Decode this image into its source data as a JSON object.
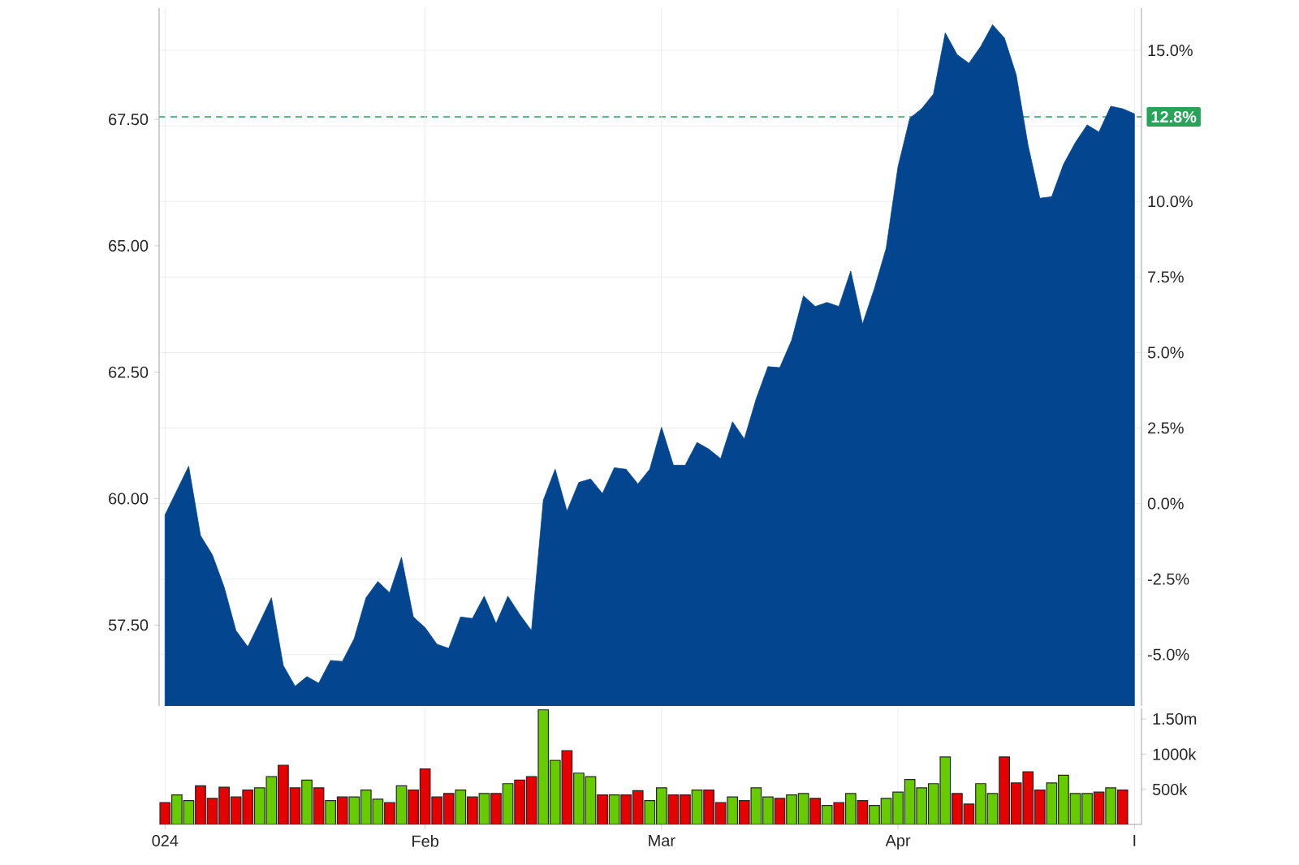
{
  "chart_data": [
    {
      "type": "area",
      "color": "#03468f",
      "categories": [
        null,
        null,
        null,
        null,
        null,
        null,
        null,
        null,
        null,
        null,
        null,
        null,
        null,
        null,
        null,
        null,
        null,
        null,
        null,
        null,
        null,
        null,
        null,
        null,
        null,
        null,
        null,
        null,
        null,
        null,
        null,
        null,
        null,
        null,
        null,
        null,
        null,
        null,
        null,
        null,
        null,
        null,
        null,
        null,
        null,
        null,
        null,
        null,
        null,
        null,
        null,
        null,
        null,
        null,
        null,
        null,
        null,
        null,
        null,
        null,
        null,
        null,
        null,
        null,
        null,
        null,
        null,
        null,
        null,
        null,
        null,
        null,
        null,
        null,
        null,
        null,
        null,
        null,
        null,
        null,
        null,
        null,
        null
      ],
      "values": [
        59.68,
        60.16,
        60.64,
        59.27,
        58.89,
        58.25,
        57.39,
        57.07,
        57.55,
        58.04,
        56.7,
        56.29,
        56.48,
        56.35,
        56.8,
        56.78,
        57.23,
        58.04,
        58.36,
        58.14,
        58.84,
        57.66,
        57.45,
        57.12,
        57.04,
        57.66,
        57.63,
        58.07,
        57.53,
        58.07,
        57.71,
        57.39,
        59.97,
        60.58,
        59.75,
        60.32,
        60.39,
        60.1,
        60.61,
        60.58,
        60.29,
        60.58,
        61.41,
        60.66,
        60.66,
        61.11,
        60.98,
        60.79,
        61.52,
        61.18,
        61.97,
        62.61,
        62.59,
        63.13,
        64.01,
        63.8,
        63.88,
        63.8,
        64.5,
        63.45,
        64.15,
        64.95,
        66.56,
        67.52,
        67.71,
        68.0,
        69.21,
        68.78,
        68.61,
        68.94,
        69.37,
        69.11,
        68.38,
        66.99,
        65.94,
        65.97,
        66.61,
        67.04,
        67.39,
        67.25,
        67.76,
        67.71,
        67.61
      ],
      "ylim": [
        55.9,
        69.7
      ],
      "yticks": [
        {
          "value": 57.5,
          "label": "57.50"
        },
        {
          "value": 60,
          "label": "60.00"
        },
        {
          "value": 62.5,
          "label": "62.50"
        },
        {
          "value": 65,
          "label": "65.00"
        },
        {
          "value": 67.5,
          "label": "67.50"
        }
      ],
      "y2lim": [
        -6.7,
        16.4
      ],
      "y2ticks": [
        {
          "value": -5,
          "label": "-5.0%"
        },
        {
          "value": -2.5,
          "label": "-2.5%"
        },
        {
          "value": 0,
          "label": "0.0%"
        },
        {
          "value": 2.5,
          "label": "2.5%"
        },
        {
          "value": 5,
          "label": "5.0%"
        },
        {
          "value": 7.5,
          "label": "7.5%"
        },
        {
          "value": 10,
          "label": "10.0%"
        },
        {
          "value": 12.5,
          "label": null
        },
        {
          "value": 15,
          "label": "15.0%"
        }
      ],
      "ref_lines": [
        {
          "axis": "y2",
          "value": 12.8,
          "label": "12.8%",
          "color": "#27a35a",
          "line_style": "dashed"
        }
      ],
      "grid": true,
      "tick_labels": "y"
    },
    {
      "type": "bar",
      "categories": [
        "024",
        null,
        null,
        null,
        null,
        null,
        null,
        null,
        null,
        null,
        null,
        null,
        null,
        null,
        null,
        null,
        null,
        null,
        null,
        null,
        null,
        null,
        "Feb",
        null,
        null,
        null,
        null,
        null,
        null,
        null,
        null,
        null,
        null,
        null,
        null,
        null,
        null,
        null,
        null,
        null,
        null,
        null,
        "Mar",
        null,
        null,
        null,
        null,
        null,
        null,
        null,
        null,
        null,
        null,
        null,
        null,
        null,
        null,
        null,
        null,
        null,
        null,
        null,
        "Apr",
        null,
        null,
        null,
        null,
        null,
        null,
        null,
        null,
        null,
        null,
        null,
        null,
        null,
        null,
        null,
        null,
        null,
        null,
        null,
        "I"
      ],
      "values": [
        310000,
        420000,
        340000,
        550000,
        370000,
        530000,
        390000,
        490000,
        520000,
        680000,
        840000,
        520000,
        630000,
        520000,
        340000,
        390000,
        390000,
        490000,
        360000,
        310000,
        550000,
        490000,
        790000,
        390000,
        440000,
        490000,
        390000,
        440000,
        440000,
        580000,
        630000,
        680000,
        1630000,
        910000,
        1050000,
        730000,
        680000,
        420000,
        420000,
        420000,
        480000,
        340000,
        520000,
        420000,
        420000,
        490000,
        490000,
        310000,
        390000,
        340000,
        520000,
        390000,
        370000,
        420000,
        440000,
        370000,
        270000,
        310000,
        440000,
        340000,
        270000,
        370000,
        460000,
        640000,
        520000,
        580000,
        960000,
        440000,
        290000,
        580000,
        440000,
        960000,
        590000,
        750000,
        490000,
        590000,
        700000,
        440000,
        440000,
        460000,
        520000,
        490000,
        null
      ],
      "colors": [
        "#e60000",
        "#66cc00",
        "#66cc00",
        "#e60000",
        "#e60000",
        "#e60000",
        "#e60000",
        "#e60000",
        "#66cc00",
        "#66cc00",
        "#e60000",
        "#e60000",
        "#66cc00",
        "#e60000",
        "#66cc00",
        "#e60000",
        "#66cc00",
        "#66cc00",
        "#66cc00",
        "#e60000",
        "#66cc00",
        "#e60000",
        "#e60000",
        "#e60000",
        "#e60000",
        "#66cc00",
        "#e60000",
        "#66cc00",
        "#e60000",
        "#66cc00",
        "#e60000",
        "#e60000",
        "#66cc00",
        "#66cc00",
        "#e60000",
        "#66cc00",
        "#66cc00",
        "#e60000",
        "#66cc00",
        "#e60000",
        "#e60000",
        "#66cc00",
        "#66cc00",
        "#e60000",
        "#e60000",
        "#66cc00",
        "#e60000",
        "#e60000",
        "#66cc00",
        "#e60000",
        "#66cc00",
        "#66cc00",
        "#e60000",
        "#66cc00",
        "#66cc00",
        "#e60000",
        "#66cc00",
        "#e60000",
        "#66cc00",
        "#e60000",
        "#66cc00",
        "#66cc00",
        "#66cc00",
        "#66cc00",
        "#66cc00",
        "#66cc00",
        "#66cc00",
        "#e60000",
        "#e60000",
        "#66cc00",
        "#66cc00",
        "#e60000",
        "#e60000",
        "#e60000",
        "#e60000",
        "#66cc00",
        "#66cc00",
        "#66cc00",
        "#66cc00",
        "#e60000",
        "#66cc00",
        "#e60000",
        null
      ],
      "ylim": [
        0,
        1650000
      ],
      "yticks": [
        {
          "value": 500000,
          "label": "500k"
        },
        {
          "value": 1000000,
          "label": "1000k"
        },
        {
          "value": 1500000,
          "label": "1.50m"
        }
      ],
      "grid": "x"
    }
  ]
}
